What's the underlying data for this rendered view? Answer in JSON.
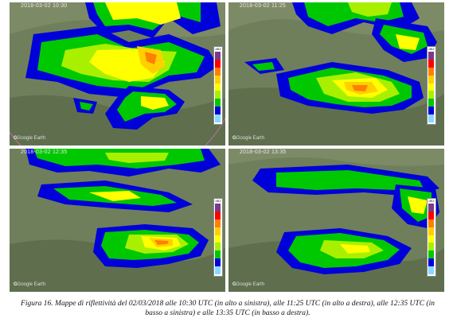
{
  "panels": [
    {
      "id": "tl",
      "timestamp": "2018-03-02 10:30",
      "attribution": "Google Earth"
    },
    {
      "id": "tr",
      "timestamp": "2018-03-02 11:25",
      "attribution": "Google Earth"
    },
    {
      "id": "bl",
      "timestamp": "2018-03-02 12:35",
      "attribution": "Google Earth"
    },
    {
      "id": "br",
      "timestamp": "2018-03-02 13:35",
      "attribution": "Google Earth"
    }
  ],
  "legend": {
    "unit": "dBZ",
    "colors": [
      "#7a3a8c",
      "#ff0000",
      "#ff7f00",
      "#ffd000",
      "#ffff00",
      "#a8f000",
      "#00c800",
      "#0000d8",
      "#8ad8ff"
    ]
  },
  "caption": "Figura 16. Mappe di riflettività del 02/03/2018 alle 10:30 UTC (in alto a sinistra), alle 11:25 UTC (in alto a destra), alle 12:35 UTC (in basso a sinistra) e alle 13:35 UTC (in basso a destra)."
}
